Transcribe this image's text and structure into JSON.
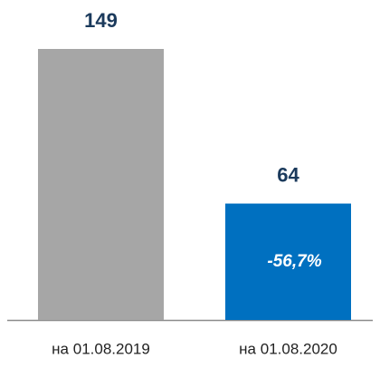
{
  "chart_data": {
    "type": "bar",
    "categories": [
      "на 01.08.2019",
      "на 01.08.2020"
    ],
    "values": [
      149,
      64
    ],
    "colors": [
      "#a6a6a6",
      "#0070c0"
    ],
    "annotations": [
      "-56,7%"
    ]
  }
}
